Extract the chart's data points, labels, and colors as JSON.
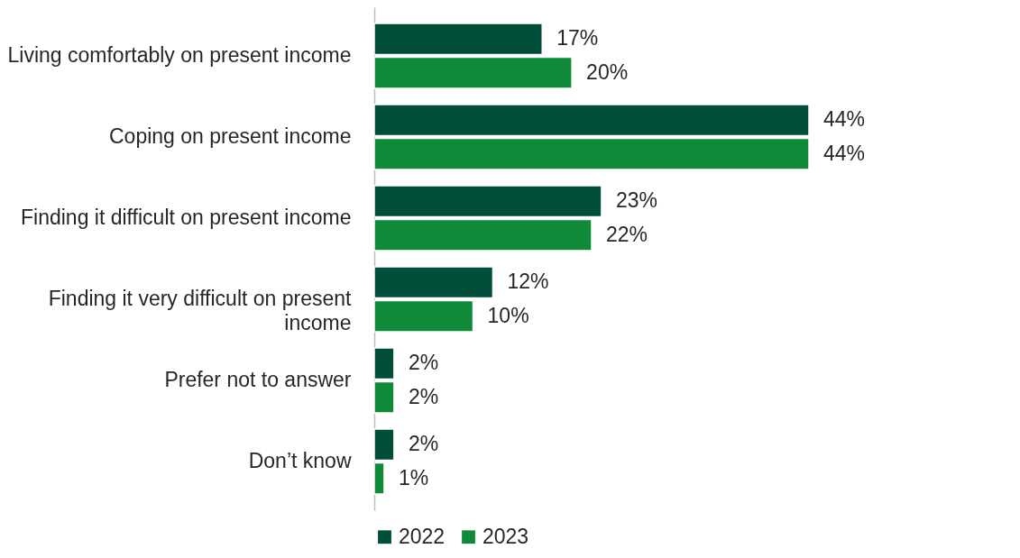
{
  "chart_data": {
    "type": "bar",
    "orientation": "horizontal",
    "categories": [
      "Living comfortably on present income",
      "Coping on present income",
      "Finding it difficult on present income",
      "Finding it very difficult on present income",
      "Prefer not to answer",
      "Don’t know"
    ],
    "series": [
      {
        "name": "2022",
        "color": "#004d3a",
        "values": [
          17,
          44,
          23,
          12,
          2,
          2
        ],
        "value_labels": [
          "17%",
          "44%",
          "23%",
          "12%",
          "2%",
          "2%"
        ]
      },
      {
        "name": "2023",
        "color": "#0f8a38",
        "values": [
          20,
          44,
          22,
          10,
          2,
          1
        ],
        "value_labels": [
          "20%",
          "44%",
          "22%",
          "10%",
          "2%",
          "1%"
        ]
      }
    ],
    "legend": "bottom",
    "grid": false
  }
}
